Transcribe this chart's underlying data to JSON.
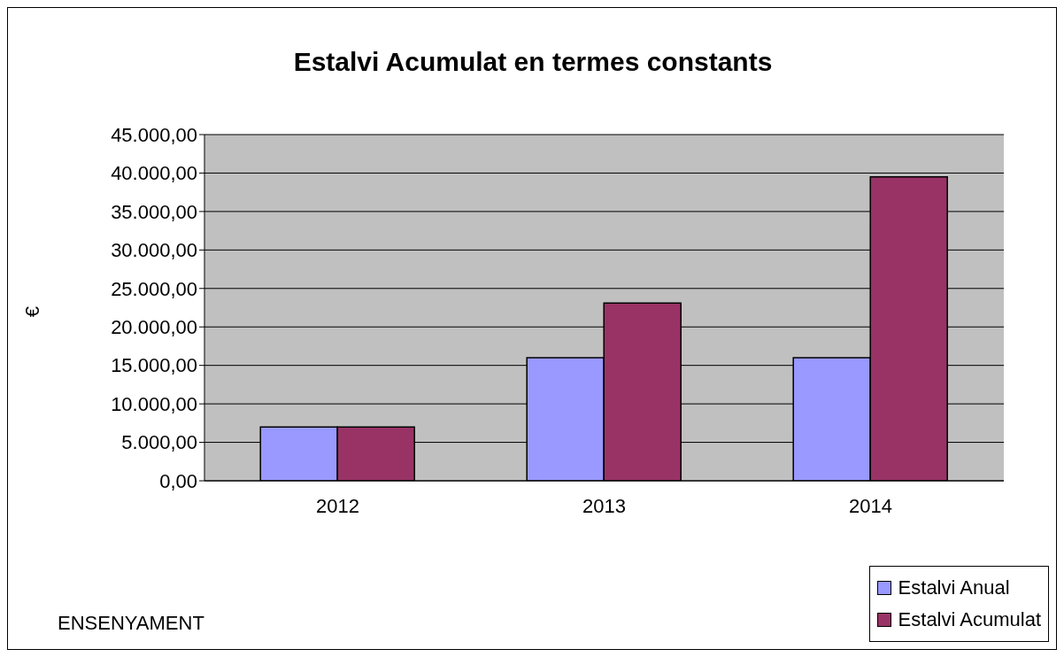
{
  "chart_data": {
    "type": "bar",
    "title": "Estalvi Acumulat en termes constants",
    "ylabel": "€",
    "categories": [
      "2012",
      "2013",
      "2014"
    ],
    "series": [
      {
        "name": "Estalvi Anual",
        "color": "#9999ff",
        "values": [
          7000,
          16000,
          16000
        ]
      },
      {
        "name": "Estalvi Acumulat",
        "color": "#993366",
        "values": [
          7000,
          23100,
          39500
        ]
      }
    ],
    "ylim": [
      0,
      45000
    ],
    "yticks": [
      {
        "value": 0,
        "label": "0,00"
      },
      {
        "value": 5000,
        "label": "5.000,00"
      },
      {
        "value": 10000,
        "label": "10.000,00"
      },
      {
        "value": 15000,
        "label": "15.000,00"
      },
      {
        "value": 20000,
        "label": "20.000,00"
      },
      {
        "value": 25000,
        "label": "25.000,00"
      },
      {
        "value": 30000,
        "label": "30.000,00"
      },
      {
        "value": 35000,
        "label": "35.000,00"
      },
      {
        "value": 40000,
        "label": "40.000,00"
      },
      {
        "value": 45000,
        "label": "45.000,00"
      }
    ],
    "grid": "y",
    "legend": "bottom right",
    "annotations": [
      "ENSENYAMENT"
    ]
  }
}
